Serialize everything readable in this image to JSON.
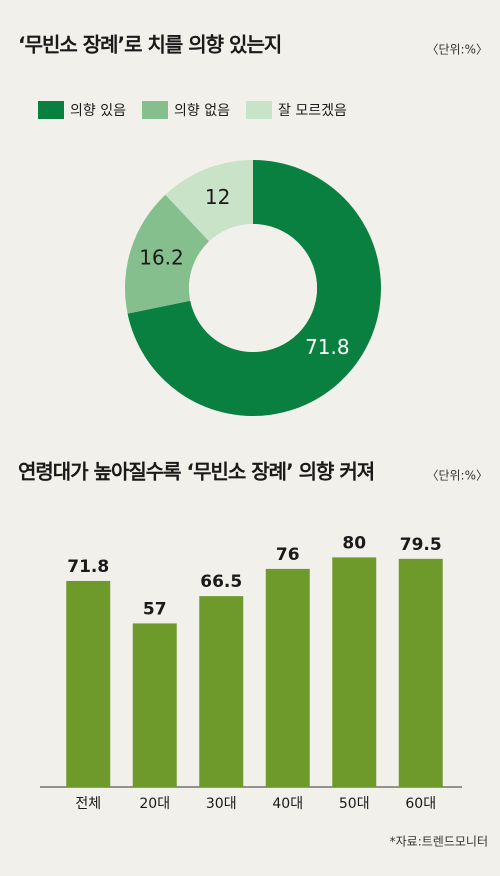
{
  "chart_data": [
    {
      "type": "pie",
      "title": "‘무빈소 장례’로 치를 의향 있는지",
      "unit": "〈단위:%〉",
      "categories": [
        "의향 있음",
        "의향 없음",
        "잘 모르겠음"
      ],
      "values": [
        71.8,
        16.2,
        12
      ],
      "colors": [
        "#0a8040",
        "#86bf8e",
        "#c9e3c9"
      ],
      "donut": true,
      "legend": "top"
    },
    {
      "type": "bar",
      "title": "연령대가 높아질수록 ‘무빈소 장례’ 의향 커져",
      "unit": "〈단위:%〉",
      "categories": [
        "전체",
        "20대",
        "30대",
        "40대",
        "50대",
        "60대"
      ],
      "values": [
        71.8,
        57,
        66.5,
        76,
        80,
        79.5
      ],
      "color": "#6e9a2c"
    }
  ],
  "source": "*자료:트렌드모니터"
}
